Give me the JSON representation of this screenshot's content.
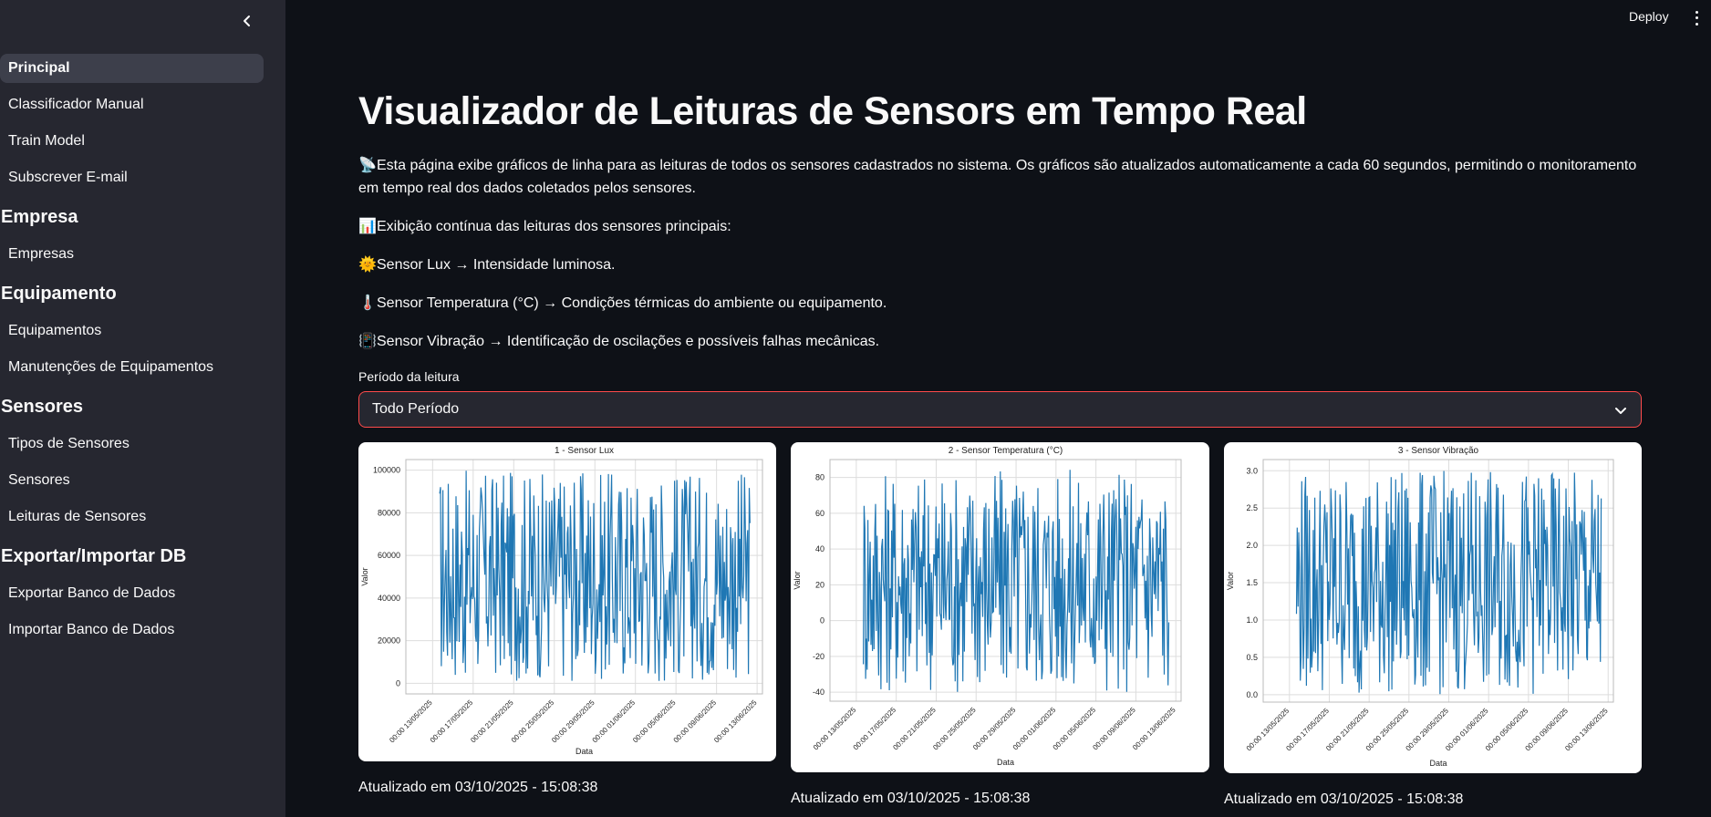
{
  "sidebar": {
    "items_top": [
      {
        "label": "Principal",
        "active": true
      },
      {
        "label": "Classificador Manual"
      },
      {
        "label": "Train Model"
      },
      {
        "label": "Subscrever E-mail"
      }
    ],
    "sections": [
      {
        "title": "Empresa",
        "items": [
          "Empresas"
        ]
      },
      {
        "title": "Equipamento",
        "items": [
          "Equipamentos",
          "Manutenções de Equipamentos"
        ]
      },
      {
        "title": "Sensores",
        "items": [
          "Tipos de Sensores",
          "Sensores",
          "Leituras de Sensores"
        ]
      },
      {
        "title": "Exportar/Importar DB",
        "items": [
          "Exportar Banco de Dados",
          "Importar Banco de Dados"
        ]
      }
    ]
  },
  "header": {
    "deploy_label": "Deploy"
  },
  "main": {
    "title": "Visualizador de Leituras de Sensors em Tempo Real",
    "intro": {
      "emoji": "📡",
      "text": "Esta página exibe gráficos de linha para as leituras de todos os sensores cadastrados no sistema. Os gráficos são atualizados automaticamente a cada 60 segundos, permitindo o monitoramento em tempo real dos dados coletados pelos sensores."
    },
    "bullets": [
      {
        "emoji": "📊",
        "text": "Exibição contínua das leituras dos sensores principais:"
      },
      {
        "emoji": "🌞",
        "text": "Sensor Lux → Intensidade luminosa."
      },
      {
        "emoji": "🌡️",
        "text": "Sensor Temperatura (°C) → Condições térmicas do ambiente ou equipamento."
      },
      {
        "emoji": "📳",
        "text": "Sensor Vibração → Identificação de oscilações e possíveis falhas mecânicas."
      }
    ],
    "select": {
      "label": "Período da leitura",
      "value": "Todo Período"
    },
    "updated_text": "Atualizado em 03/10/2025 - 15:08:38"
  },
  "colors": {
    "line": "#1f77b4",
    "accent_border": "#ff4b4b",
    "sidebar_bg": "#262730",
    "main_bg": "#0e1117"
  },
  "chart_data": [
    {
      "type": "line",
      "title": "1 - Sensor Lux",
      "xlabel": "Data",
      "ylabel": "Valor",
      "ylim": [
        -5000,
        105000
      ],
      "yticks": [
        0,
        20000,
        40000,
        60000,
        80000,
        100000
      ],
      "xticks": [
        "00:00 13/05/2025",
        "00:00 17/05/2025",
        "00:00 21/05/2025",
        "00:00 25/05/2025",
        "00:00 29/05/2025",
        "00:00 01/06/2025",
        "00:00 05/06/2025",
        "00:00 09/06/2025",
        "00:00 13/06/2025"
      ],
      "grid": true,
      "series": [
        {
          "range": [
            1000,
            100000
          ],
          "n": 400
        }
      ]
    },
    {
      "type": "line",
      "title": "2 - Sensor Temperatura (°C)",
      "xlabel": "Data",
      "ylabel": "Valor",
      "ylim": [
        -45,
        90
      ],
      "yticks": [
        -40,
        -20,
        0,
        20,
        40,
        60,
        80
      ],
      "xticks": [
        "00:00 13/05/2025",
        "00:00 17/05/2025",
        "00:00 21/05/2025",
        "00:00 25/05/2025",
        "00:00 29/05/2025",
        "00:00 01/06/2025",
        "00:00 05/06/2025",
        "00:00 09/06/2025",
        "00:00 13/06/2025"
      ],
      "grid": true,
      "series": [
        {
          "range": [
            -40,
            85
          ],
          "n": 400
        }
      ]
    },
    {
      "type": "line",
      "title": "3 - Sensor Vibração",
      "xlabel": "Data",
      "ylabel": "Valor",
      "ylim": [
        -0.1,
        3.15
      ],
      "yticks": [
        0.0,
        0.5,
        1.0,
        1.5,
        2.0,
        2.5,
        3.0
      ],
      "xticks": [
        "00:00 13/05/2025",
        "00:00 17/05/2025",
        "00:00 21/05/2025",
        "00:00 25/05/2025",
        "00:00 29/05/2025",
        "00:00 01/06/2025",
        "00:00 05/06/2025",
        "00:00 09/06/2025",
        "00:00 13/06/2025"
      ],
      "grid": true,
      "series": [
        {
          "range": [
            0.0,
            3.0
          ],
          "n": 400
        }
      ]
    }
  ]
}
